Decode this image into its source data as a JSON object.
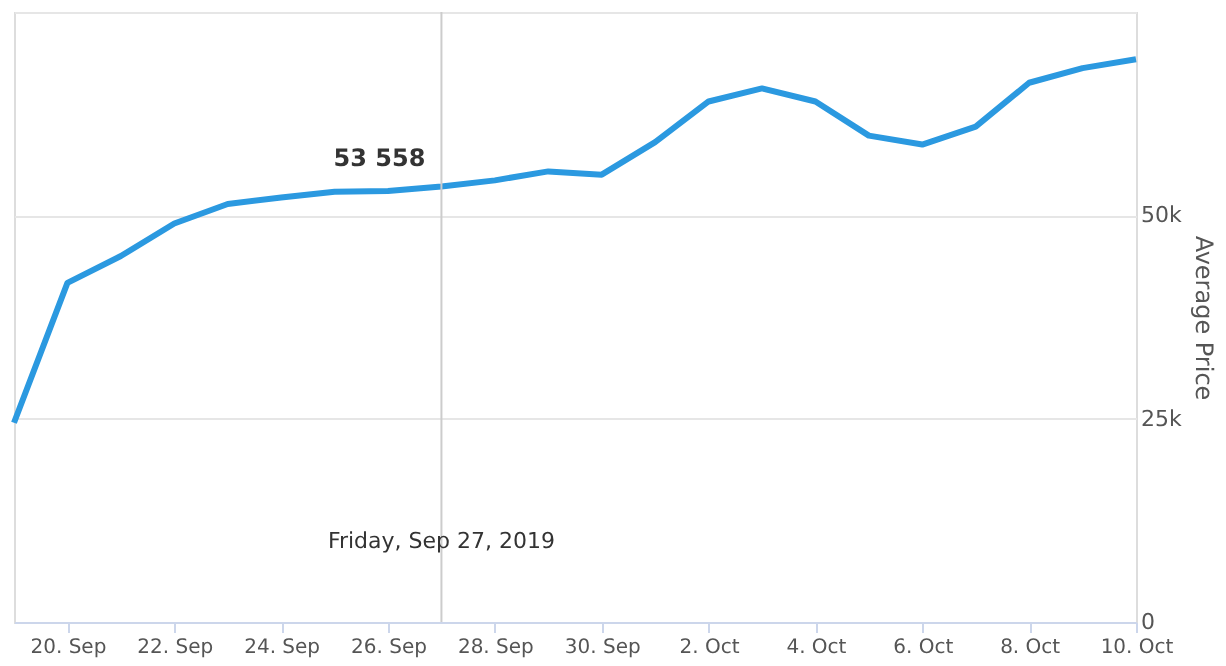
{
  "chart_data": {
    "type": "line",
    "ylabel": "Average Price",
    "x": [
      "2019-09-19",
      "2019-09-20",
      "2019-09-21",
      "2019-09-22",
      "2019-09-23",
      "2019-09-24",
      "2019-09-25",
      "2019-09-26",
      "2019-09-27",
      "2019-09-28",
      "2019-09-29",
      "2019-09-30",
      "2019-10-01",
      "2019-10-02",
      "2019-10-03",
      "2019-10-04",
      "2019-10-05",
      "2019-10-06",
      "2019-10-07",
      "2019-10-08",
      "2019-10-09",
      "2019-10-10"
    ],
    "series": [
      {
        "color": "#2b99e0",
        "values": [
          24500,
          41700,
          45000,
          49000,
          51400,
          52200,
          52900,
          53000,
          53558,
          54300,
          55400,
          55000,
          59000,
          64000,
          65600,
          64000,
          59800,
          58700,
          60900,
          66300,
          68100,
          69200
        ]
      }
    ],
    "xlim": [
      "2019-09-19",
      "2019-10-10"
    ],
    "xticks": [
      {
        "value": "2019-09-20",
        "label": "20. Sep"
      },
      {
        "value": "2019-09-22",
        "label": "22. Sep"
      },
      {
        "value": "2019-09-24",
        "label": "24. Sep"
      },
      {
        "value": "2019-09-26",
        "label": "26. Sep"
      },
      {
        "value": "2019-09-28",
        "label": "28. Sep"
      },
      {
        "value": "2019-09-30",
        "label": "30. Sep"
      },
      {
        "value": "2019-10-02",
        "label": "2. Oct"
      },
      {
        "value": "2019-10-04",
        "label": "4. Oct"
      },
      {
        "value": "2019-10-06",
        "label": "6. Oct"
      },
      {
        "value": "2019-10-08",
        "label": "8. Oct"
      },
      {
        "value": "2019-10-10",
        "label": "10. Oct"
      }
    ],
    "ylim": [
      0,
      75000
    ],
    "yticks": [
      0,
      {
        "value": 25000,
        "label": "25k"
      },
      {
        "value": 50000,
        "label": "50k"
      },
      {
        "value": 75000,
        "label": null
      }
    ],
    "grid": "y",
    "marker": "none",
    "line_style": "solid",
    "ref_lines": [
      {
        "axis": "x",
        "value": "2019-09-27",
        "label": "Friday, Sep 27, 2019",
        "color": "#cccccc"
      }
    ],
    "annotations": [
      {
        "text": "53 558",
        "x": "2019-09-27",
        "y": 53558
      }
    ]
  }
}
